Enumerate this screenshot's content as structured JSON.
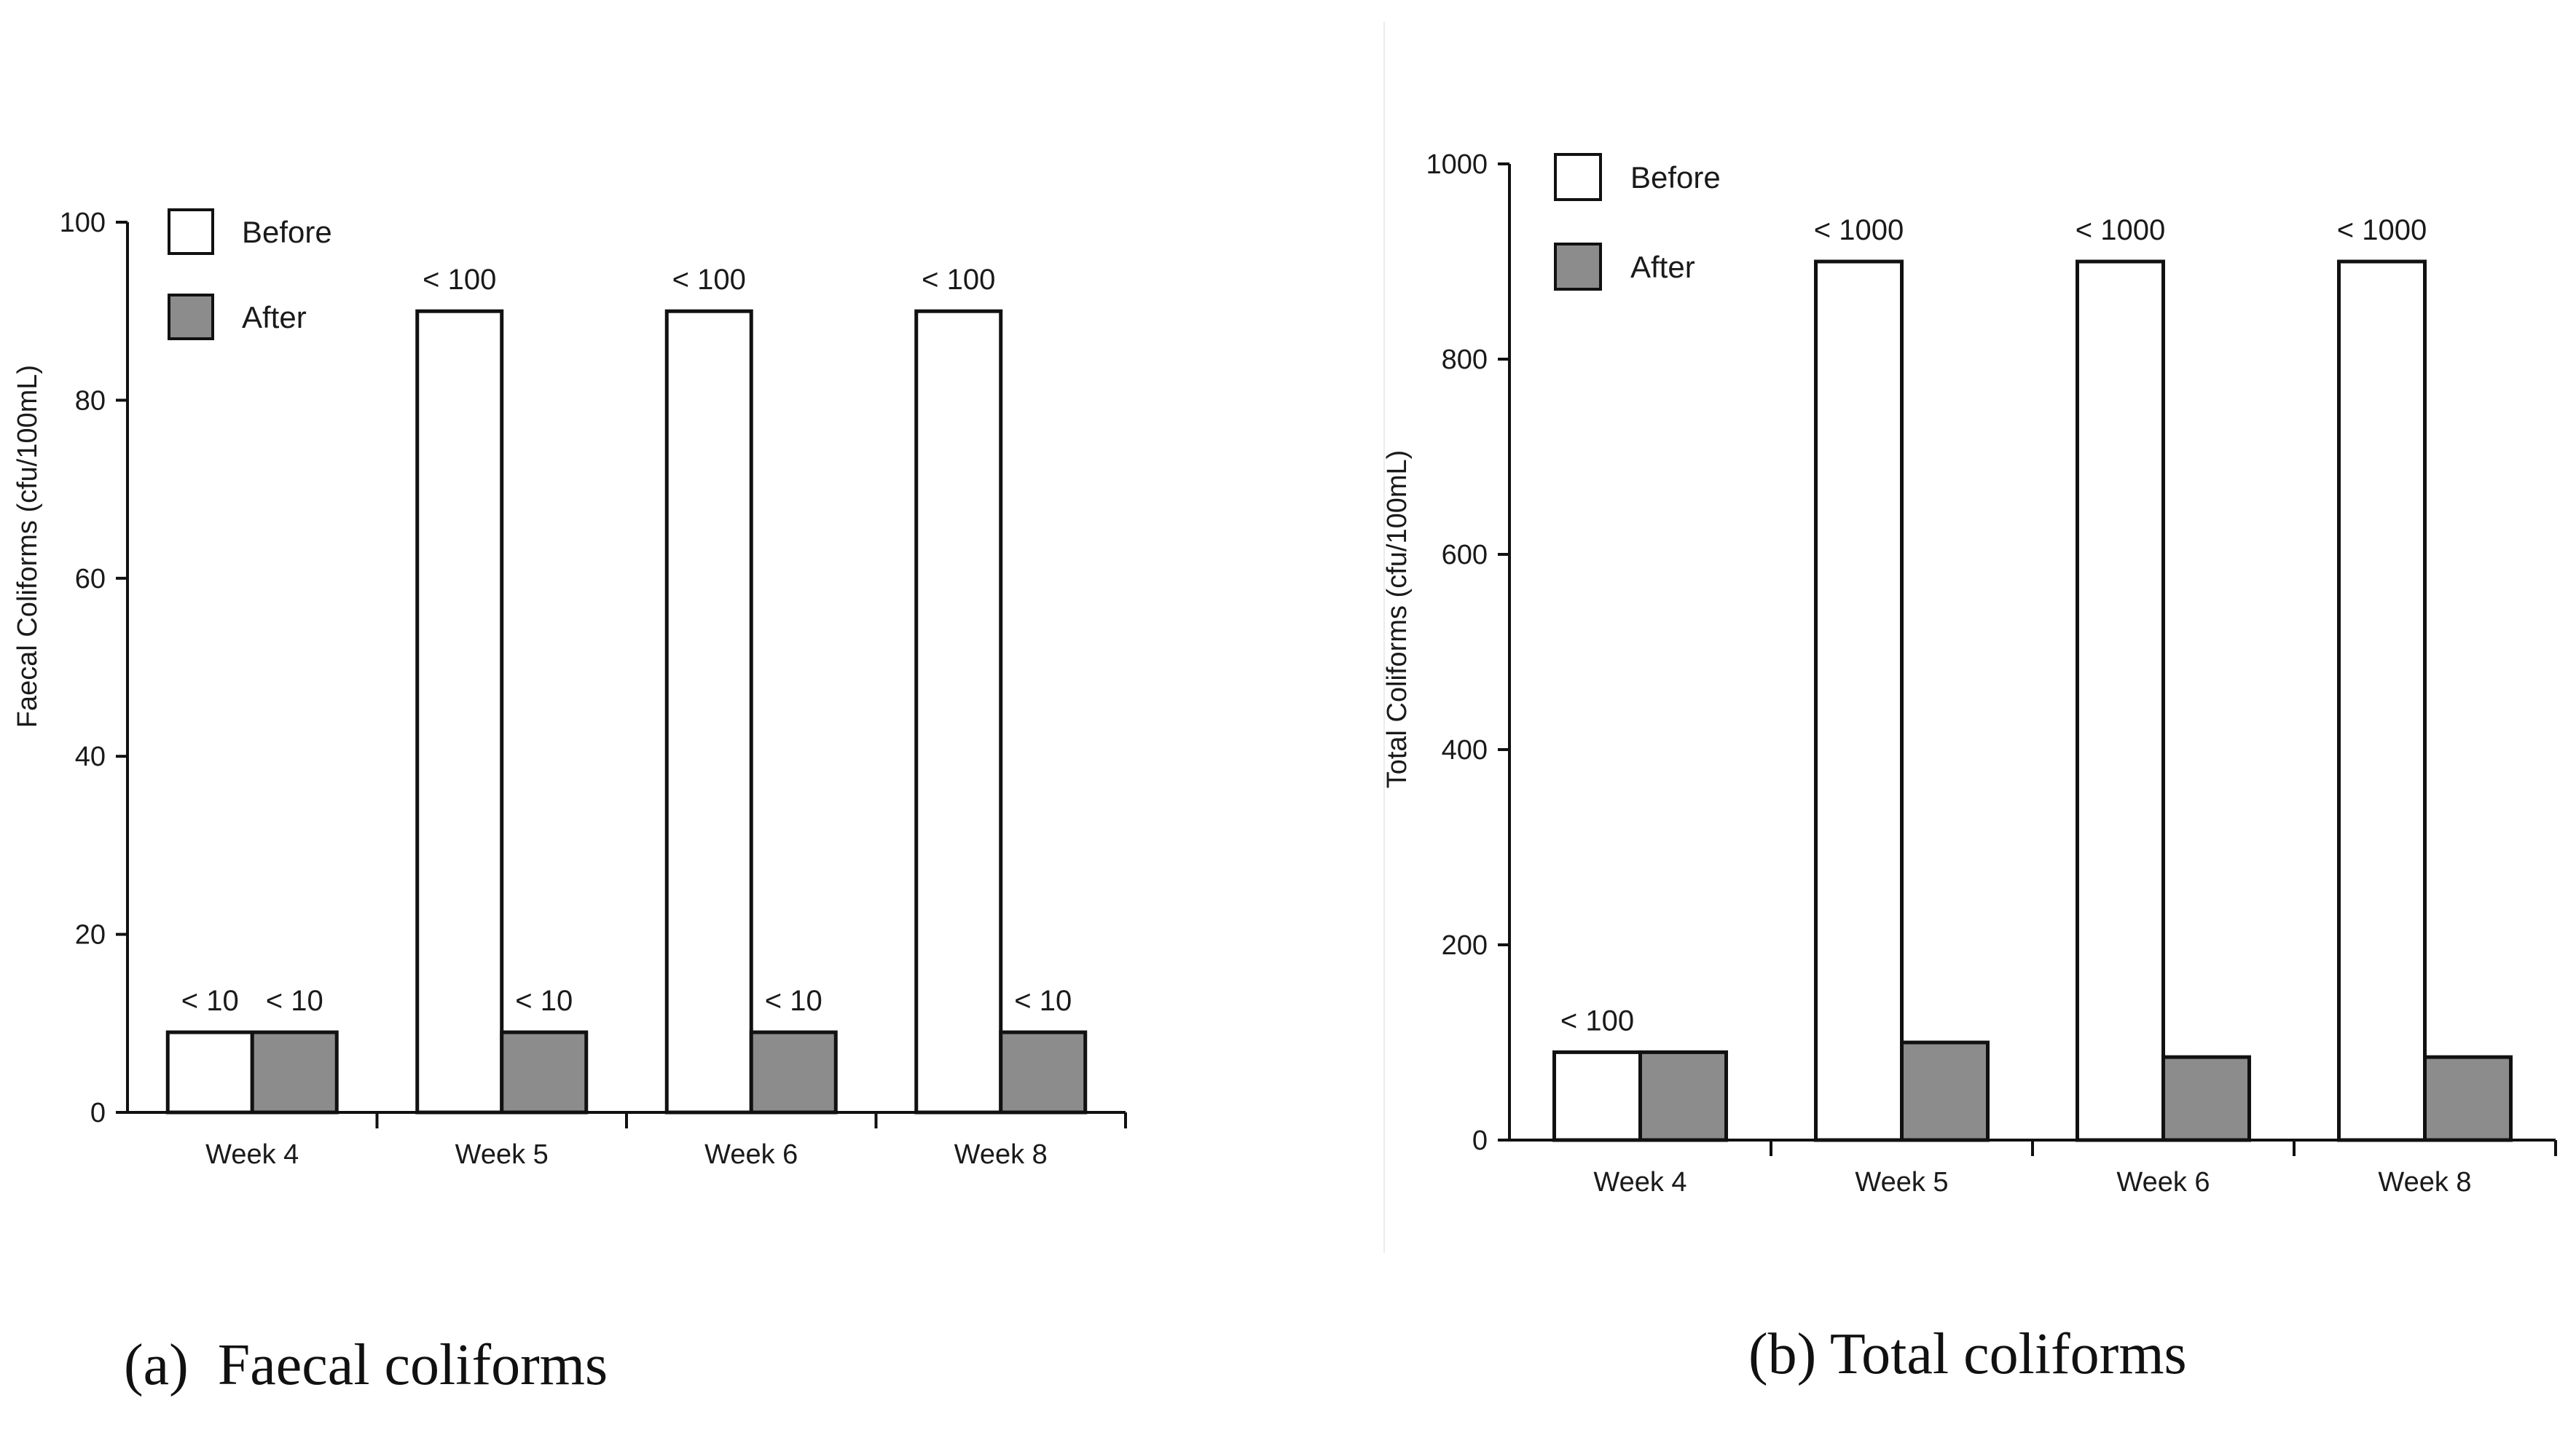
{
  "chart_data": [
    {
      "type": "bar",
      "categories": [
        "Week 4",
        "Week 5",
        "Week 6",
        "Week 8"
      ],
      "series": [
        {
          "name": "Before",
          "values": [
            9,
            90,
            90,
            90
          ],
          "labels": [
            "< 10",
            "< 100",
            "< 100",
            "< 100"
          ]
        },
        {
          "name": "After",
          "values": [
            9,
            9,
            9,
            9
          ],
          "labels": [
            "< 10",
            "< 10",
            "< 10",
            "< 10"
          ]
        }
      ],
      "ylabel": "Faecal Coliforms (cfu/100mL)",
      "ylim": [
        0,
        100
      ],
      "yticks": [
        0,
        20,
        40,
        60,
        80,
        100
      ],
      "legend": "top-left",
      "caption": "(a)  Faecal coliforms"
    },
    {
      "type": "bar",
      "categories": [
        "Week 4",
        "Week 5",
        "Week 6",
        "Week 8"
      ],
      "series": [
        {
          "name": "Before",
          "values": [
            90,
            900,
            900,
            900
          ],
          "labels": [
            "< 100",
            "< 1000",
            "< 1000",
            "< 1000"
          ]
        },
        {
          "name": "After",
          "values": [
            90,
            100,
            85,
            85
          ],
          "labels": [
            "",
            "",
            "",
            ""
          ]
        }
      ],
      "ylabel": "Total Coliforms (cfu/100mL)",
      "ylim": [
        0,
        1000
      ],
      "yticks": [
        0,
        200,
        400,
        600,
        800,
        1000
      ],
      "legend": "top-left",
      "caption": "(b) Total coliforms"
    }
  ],
  "colors": {
    "before": "#ffffff",
    "after": "#8c8c8c",
    "stroke": "#111111"
  }
}
